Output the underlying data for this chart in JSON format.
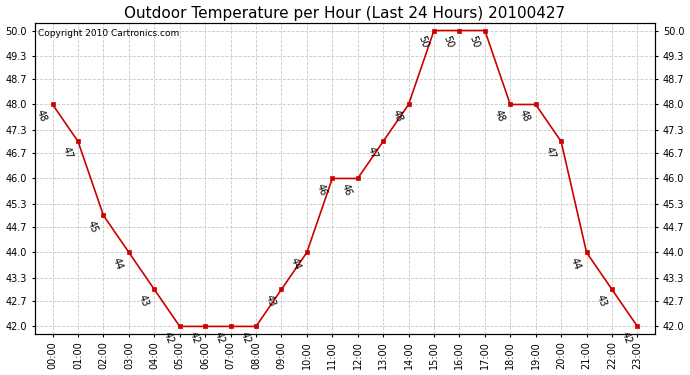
{
  "title": "Outdoor Temperature per Hour (Last 24 Hours) 20100427",
  "copyright": "Copyright 2010 Cartronics.com",
  "hours": [
    "00:00",
    "01:00",
    "02:00",
    "03:00",
    "04:00",
    "05:00",
    "06:00",
    "07:00",
    "08:00",
    "09:00",
    "10:00",
    "11:00",
    "12:00",
    "13:00",
    "14:00",
    "15:00",
    "16:00",
    "17:00",
    "18:00",
    "19:00",
    "20:00",
    "21:00",
    "22:00",
    "23:00"
  ],
  "temps": [
    48,
    47,
    45,
    44,
    43,
    42,
    42,
    42,
    42,
    43,
    44,
    46,
    46,
    47,
    48,
    50,
    50,
    50,
    48,
    48,
    47,
    44,
    43,
    42
  ],
  "line_color": "#cc0000",
  "marker_color": "#cc0000",
  "bg_color": "#ffffff",
  "grid_color": "#c8c8c8",
  "ylim_min": 41.8,
  "ylim_max": 50.2,
  "ytick_values": [
    42.0,
    42.7,
    43.3,
    44.0,
    44.7,
    45.3,
    46.0,
    46.7,
    47.3,
    48.0,
    48.7,
    49.3,
    50.0
  ],
  "title_fontsize": 11,
  "label_fontsize": 7,
  "copyright_fontsize": 6.5,
  "tick_fontsize": 7
}
